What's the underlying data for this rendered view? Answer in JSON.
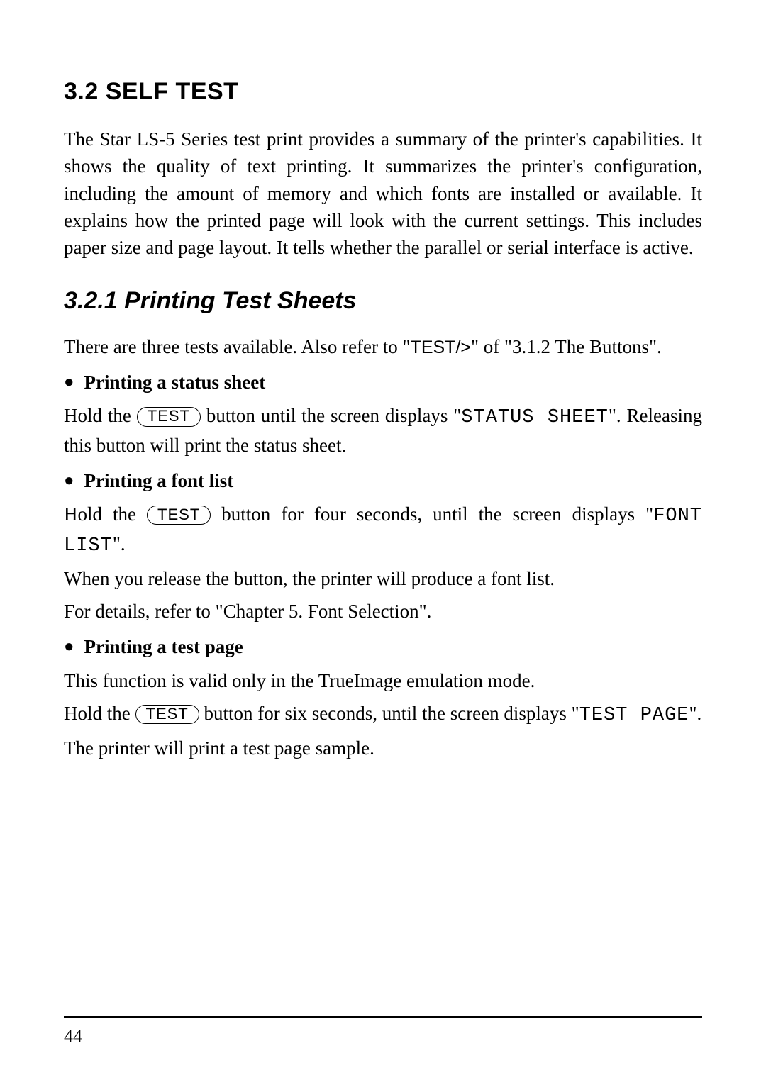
{
  "page": {
    "number": "44"
  },
  "h1": "3.2 SELF TEST",
  "intro": "The Star LS-5 Series test print provides a summary of the printer's capabilities. It shows the quality of text printing. It summarizes the printer's configuration, including the amount of memory and which fonts are installed or available. It explains how the printed page will look with the current settings. This includes paper size and page layout. It tells whether the parallel or serial interface is active.",
  "h2": "3.2.1 Printing Test Sheets",
  "sub_intro_a": "There are three tests available. Also refer to \"",
  "sub_intro_sans": "TEST/>",
  "sub_intro_b": "\" of \"3.1.2 The Buttons\".",
  "button_label": "TEST",
  "sections": {
    "status": {
      "title": "Printing a status sheet",
      "pre": "Hold the ",
      "mid": " button until the screen displays \"",
      "mono": "STATUS SHEET",
      "post": "\". Releasing this button will print the status sheet."
    },
    "font": {
      "title": "Printing a font list",
      "pre": "Hold the ",
      "mid": " button for four seconds, until the screen displays \"",
      "mono": "FONT LIST",
      "post": "\".",
      "line2": "When you release the button, the printer will produce a font list.",
      "line3": "For details, refer to \"Chapter 5. Font Selection\"."
    },
    "testpage": {
      "title": "Printing a test page",
      "line1": "This function is valid only in the TrueImage emulation mode.",
      "pre": "Hold the ",
      "mid": " button for six seconds, until the screen displays \"",
      "mono": "TEST PAGE",
      "post": "\".",
      "line3": "The printer will print a test page sample."
    }
  }
}
